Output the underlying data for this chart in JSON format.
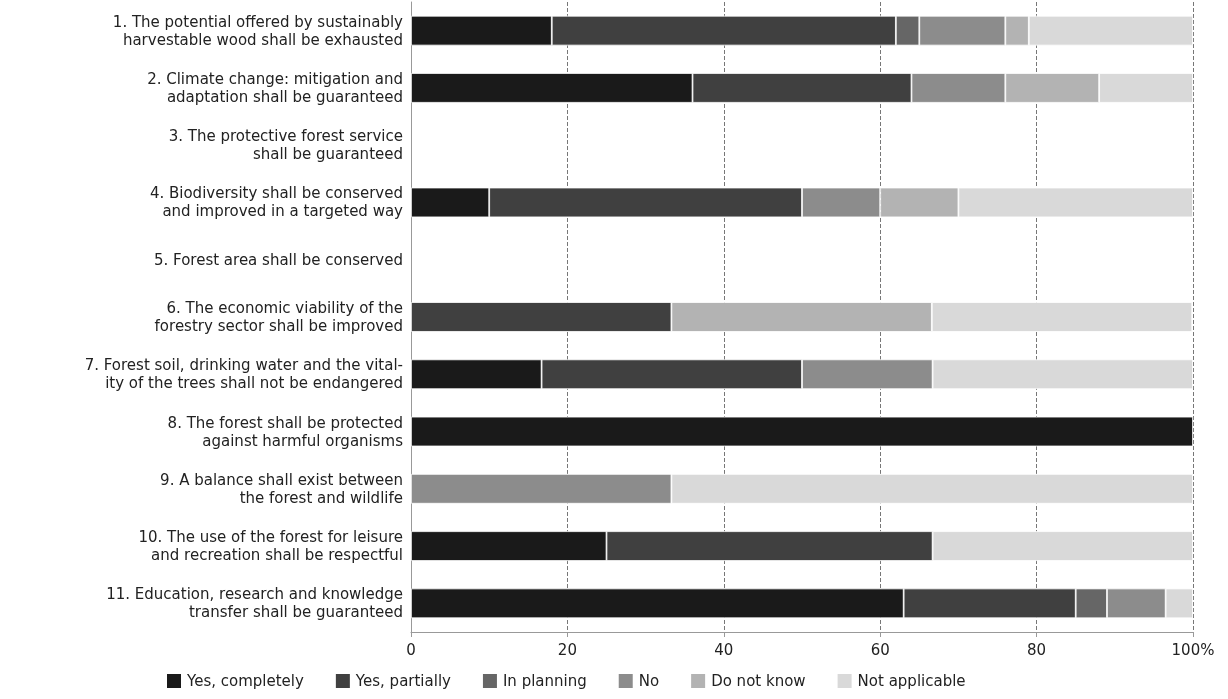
{
  "chart_data": {
    "type": "bar",
    "orientation": "horizontal",
    "stacked": true,
    "categories": [
      "1. The potential offered by sustainably\nharvestable wood shall be exhausted",
      "2. Climate change: mitigation and\nadaptation shall be guaranteed",
      "3. The protective forest service\nshall be guaranteed",
      "4. Biodiversity shall be conserved\nand improved in a targeted way",
      "5. Forest area shall be conserved",
      "6. The economic viability of the\nforestry sector shall be improved",
      "7. Forest soil, drinking water and the vital-\nity of the trees shall not be endangered",
      "8. The forest shall be protected\nagainst harmful organisms",
      "9. A balance shall exist between\nthe forest and wildlife",
      "10. The use of the forest for leisure\nand recreation shall be respectful",
      "11. Education, research and knowledge\ntransfer shall be guaranteed"
    ],
    "series": [
      {
        "name": "Yes, completely",
        "color": "#1a1a1a",
        "values": [
          18,
          36,
          null,
          10,
          null,
          0,
          16.7,
          100,
          0,
          25,
          63
        ]
      },
      {
        "name": "Yes, partially",
        "color": "#404040",
        "values": [
          44,
          28,
          null,
          40,
          null,
          33.3,
          33.3,
          0,
          0,
          41.7,
          22
        ]
      },
      {
        "name": "In planning",
        "color": "#666666",
        "values": [
          3,
          0,
          null,
          0,
          null,
          0,
          0,
          0,
          0,
          0,
          4
        ]
      },
      {
        "name": "No",
        "color": "#8c8c8c",
        "values": [
          11,
          12,
          null,
          10,
          null,
          0,
          16.7,
          0,
          33.3,
          0,
          7.5
        ]
      },
      {
        "name": "Do not know",
        "color": "#b3b3b3",
        "values": [
          3,
          12,
          null,
          10,
          null,
          33.3,
          0,
          0,
          0,
          0,
          0
        ]
      },
      {
        "name": "Not applicable",
        "color": "#d9d9d9",
        "values": [
          21,
          12,
          null,
          30,
          null,
          33.3,
          33.3,
          0,
          66.7,
          33.3,
          3.5
        ]
      }
    ],
    "xlim": [
      0,
      100
    ],
    "xticks": [
      0,
      20,
      40,
      60,
      80,
      {
        "value": 100,
        "label": "100%"
      }
    ],
    "grid": "x",
    "legend": "bottom"
  }
}
